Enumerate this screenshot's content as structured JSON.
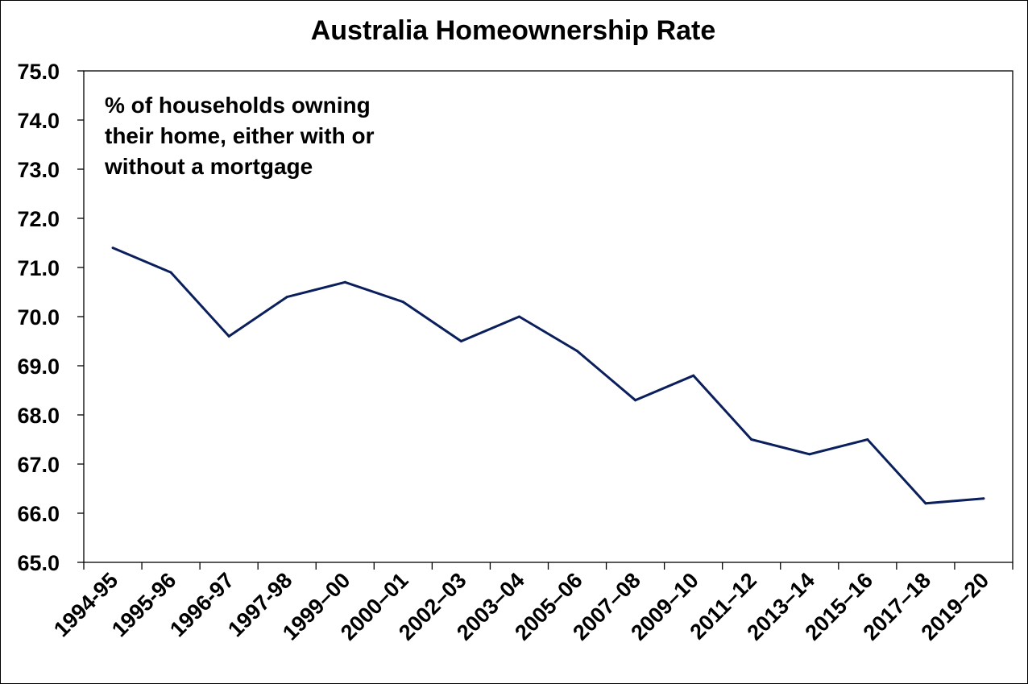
{
  "chart_data": {
    "type": "line",
    "title": "Australia Homeownership Rate",
    "annotation": [
      "% of households owning",
      "their home, either with or",
      "without a mortgage"
    ],
    "xlabel": "",
    "ylabel": "",
    "categories": [
      "1994-95",
      "1995-96",
      "1996-97",
      "1997-98",
      "1999–00",
      "2000–01",
      "2002–03",
      "2003–04",
      "2005–06",
      "2007–08",
      "2009–10",
      "2011–12",
      "2013–14",
      "2015–16",
      "2017–18",
      "2019–20"
    ],
    "series": [
      {
        "values": [
          71.4,
          70.9,
          69.6,
          70.4,
          70.7,
          70.3,
          69.5,
          70.0,
          69.3,
          68.3,
          68.8,
          67.5,
          67.2,
          67.5,
          66.2,
          66.3
        ],
        "color": "#0a1f5c"
      }
    ],
    "yticks": [
      "65.0",
      "66.0",
      "67.0",
      "68.0",
      "69.0",
      "70.0",
      "71.0",
      "72.0",
      "73.0",
      "74.0",
      "75.0"
    ],
    "ylim": [
      65,
      75
    ],
    "grid": false,
    "legend": "none"
  }
}
